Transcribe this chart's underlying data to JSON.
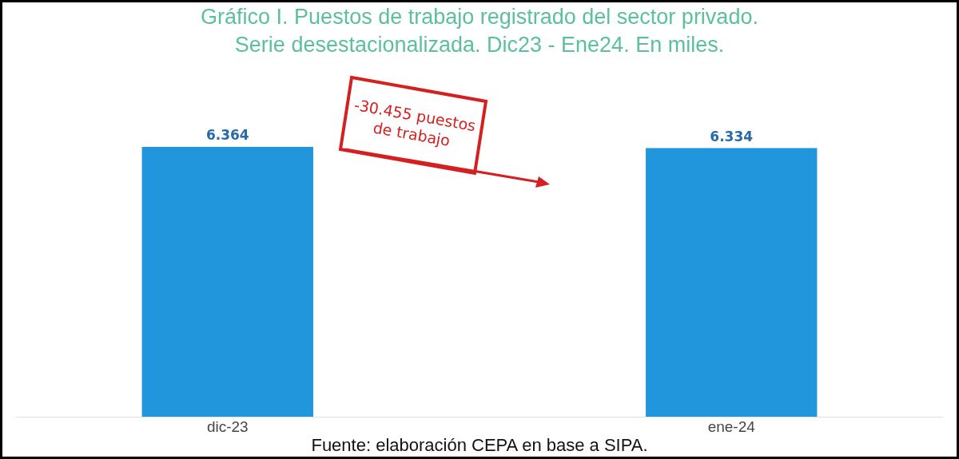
{
  "chart_data": {
    "type": "bar",
    "title": "Gráfico I. Puestos de trabajo registrado del sector privado.",
    "subtitle": "Serie desestacionalizada. Dic23 - Ene24. En miles.",
    "categories": [
      "dic-23",
      "ene-24"
    ],
    "values": [
      6364,
      6334
    ],
    "value_labels": [
      "6.364",
      "6.334"
    ],
    "color": "#2196dc",
    "annotations": [
      "-30.455 puestos de trabajo",
      "Fuente: elaboración CEPA en base a SIPA."
    ]
  }
}
